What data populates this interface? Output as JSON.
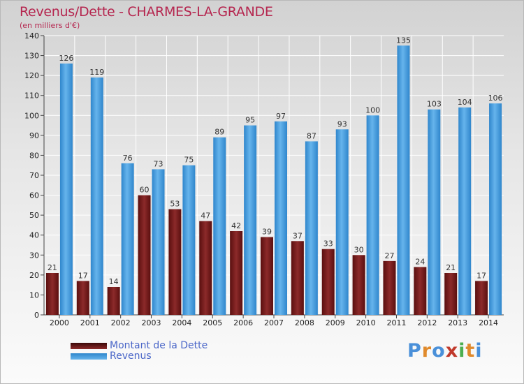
{
  "header": {
    "title": "Revenus/Dette - CHARMES-LA-GRANDE",
    "unit": "(en milliers d'€)"
  },
  "legend": {
    "items": [
      {
        "label": "Montant de la Dette",
        "color": "#6e1a1a"
      },
      {
        "label": "Revenus",
        "color": "#3d9ad8"
      }
    ]
  },
  "logo": {
    "text": "Proxiti",
    "letters": [
      "P",
      "r",
      "o",
      "x",
      "i",
      "t",
      "i"
    ],
    "colors": [
      "#4a90d9",
      "#e08a2c",
      "#4a90d9",
      "#c0392b",
      "#4caf50",
      "#e08a2c",
      "#4a90d9"
    ]
  },
  "chart_data": {
    "type": "bar",
    "categories": [
      "2000",
      "2001",
      "2002",
      "2003",
      "2004",
      "2005",
      "2006",
      "2007",
      "2008",
      "2009",
      "2010",
      "2011",
      "2012",
      "2013",
      "2014"
    ],
    "series": [
      {
        "name": "Montant de la Dette",
        "color": "#6e1a1a",
        "values": [
          21,
          17,
          14,
          60,
          53,
          47,
          42,
          39,
          37,
          33,
          30,
          27,
          24,
          21,
          17
        ]
      },
      {
        "name": "Revenus",
        "color": "#3d9ad8",
        "values": [
          126,
          119,
          76,
          73,
          75,
          89,
          95,
          97,
          87,
          93,
          100,
          135,
          103,
          104,
          106
        ]
      }
    ],
    "ylim": [
      0,
      140
    ],
    "yticks": [
      0,
      10,
      20,
      30,
      40,
      50,
      60,
      70,
      80,
      90,
      100,
      110,
      120,
      130,
      140
    ],
    "grid": true,
    "legend_position": "bottom-left",
    "data_labels": true
  }
}
